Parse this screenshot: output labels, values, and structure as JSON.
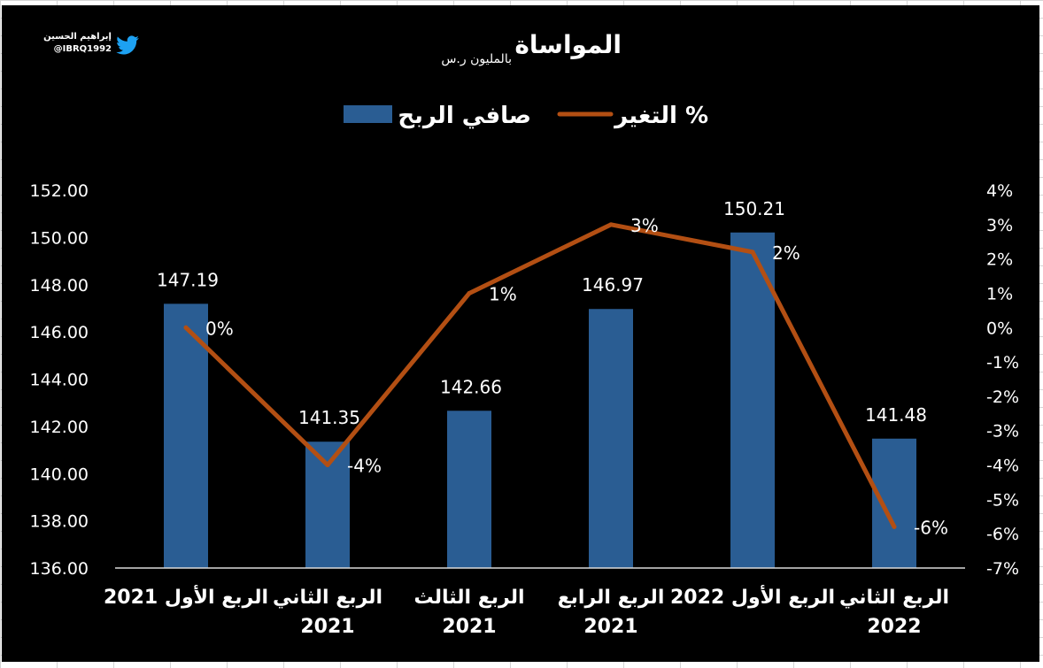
{
  "brand": {
    "name": "إبراهيم الحسين",
    "handle": "@IBRQ1992",
    "icon": "twitter-bird-icon"
  },
  "colors": {
    "background": "#000000",
    "bar": "#2a5d93",
    "line": "#b34f13",
    "text": "#ffffff",
    "twitter": "#1da1f2"
  },
  "chart_data": {
    "type": "bar",
    "title": "المواساة",
    "subtitle": "بالمليون ر.س",
    "categories": [
      [
        "الربع الأول 2021"
      ],
      [
        "الربع الثاني",
        "2021"
      ],
      [
        "الربع الثالث",
        "2021"
      ],
      [
        "الربع الرابع",
        "2021"
      ],
      [
        "الربع الأول 2022"
      ],
      [
        "الربع الثاني",
        "2022"
      ]
    ],
    "series": [
      {
        "name": "صافي الربح",
        "type": "bar",
        "axis": "left",
        "values": [
          147.19,
          141.35,
          142.66,
          146.97,
          150.21,
          141.48
        ],
        "labels": [
          "147.19",
          "141.35",
          "142.66",
          "146.97",
          "150.21",
          "141.48"
        ]
      },
      {
        "name": "التغير %",
        "type": "line",
        "axis": "right",
        "values": [
          0,
          -4,
          1,
          3,
          2.2,
          -5.8
        ],
        "labels": [
          "0%",
          "-4%",
          "1%",
          "3%",
          "2%",
          "-6%"
        ]
      }
    ],
    "left_axis": {
      "ylim": [
        136,
        152
      ],
      "ticks": [
        "136.00",
        "138.00",
        "140.00",
        "142.00",
        "144.00",
        "146.00",
        "148.00",
        "150.00",
        "152.00"
      ]
    },
    "right_axis": {
      "ylim": [
        -7,
        4
      ],
      "ticks": [
        "-7%",
        "-6%",
        "-5%",
        "-4%",
        "-3%",
        "-2%",
        "-1%",
        "0%",
        "1%",
        "2%",
        "3%",
        "4%"
      ]
    },
    "legend_position": "top-center",
    "grid": false
  }
}
